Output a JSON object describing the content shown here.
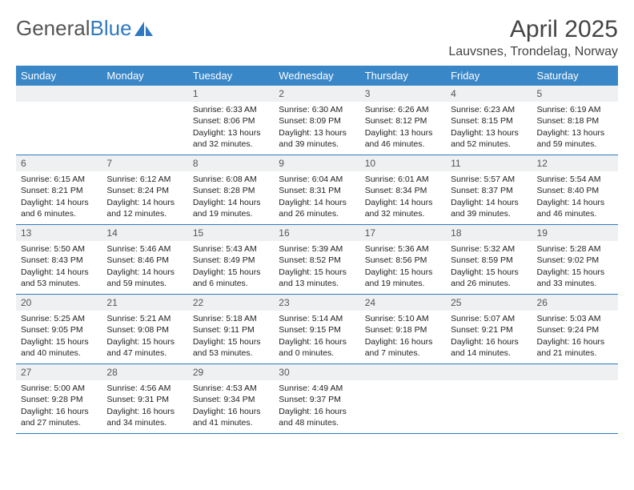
{
  "brand": {
    "part1": "General",
    "part2": "Blue"
  },
  "title": "April 2025",
  "location": "Lauvsnes, Trondelag, Norway",
  "colors": {
    "header_bg": "#3a87c8",
    "header_text": "#ffffff",
    "band_bg": "#eef0f2",
    "rule": "#2f79c2",
    "logo_gray": "#555555",
    "logo_blue": "#2f79c2"
  },
  "weekdays": [
    "Sunday",
    "Monday",
    "Tuesday",
    "Wednesday",
    "Thursday",
    "Friday",
    "Saturday"
  ],
  "weeks": [
    [
      {
        "blank": true
      },
      {
        "blank": true
      },
      {
        "n": "1",
        "sr": "6:33 AM",
        "ss": "8:06 PM",
        "dl": "13 hours and 32 minutes."
      },
      {
        "n": "2",
        "sr": "6:30 AM",
        "ss": "8:09 PM",
        "dl": "13 hours and 39 minutes."
      },
      {
        "n": "3",
        "sr": "6:26 AM",
        "ss": "8:12 PM",
        "dl": "13 hours and 46 minutes."
      },
      {
        "n": "4",
        "sr": "6:23 AM",
        "ss": "8:15 PM",
        "dl": "13 hours and 52 minutes."
      },
      {
        "n": "5",
        "sr": "6:19 AM",
        "ss": "8:18 PM",
        "dl": "13 hours and 59 minutes."
      }
    ],
    [
      {
        "n": "6",
        "sr": "6:15 AM",
        "ss": "8:21 PM",
        "dl": "14 hours and 6 minutes."
      },
      {
        "n": "7",
        "sr": "6:12 AM",
        "ss": "8:24 PM",
        "dl": "14 hours and 12 minutes."
      },
      {
        "n": "8",
        "sr": "6:08 AM",
        "ss": "8:28 PM",
        "dl": "14 hours and 19 minutes."
      },
      {
        "n": "9",
        "sr": "6:04 AM",
        "ss": "8:31 PM",
        "dl": "14 hours and 26 minutes."
      },
      {
        "n": "10",
        "sr": "6:01 AM",
        "ss": "8:34 PM",
        "dl": "14 hours and 32 minutes."
      },
      {
        "n": "11",
        "sr": "5:57 AM",
        "ss": "8:37 PM",
        "dl": "14 hours and 39 minutes."
      },
      {
        "n": "12",
        "sr": "5:54 AM",
        "ss": "8:40 PM",
        "dl": "14 hours and 46 minutes."
      }
    ],
    [
      {
        "n": "13",
        "sr": "5:50 AM",
        "ss": "8:43 PM",
        "dl": "14 hours and 53 minutes."
      },
      {
        "n": "14",
        "sr": "5:46 AM",
        "ss": "8:46 PM",
        "dl": "14 hours and 59 minutes."
      },
      {
        "n": "15",
        "sr": "5:43 AM",
        "ss": "8:49 PM",
        "dl": "15 hours and 6 minutes."
      },
      {
        "n": "16",
        "sr": "5:39 AM",
        "ss": "8:52 PM",
        "dl": "15 hours and 13 minutes."
      },
      {
        "n": "17",
        "sr": "5:36 AM",
        "ss": "8:56 PM",
        "dl": "15 hours and 19 minutes."
      },
      {
        "n": "18",
        "sr": "5:32 AM",
        "ss": "8:59 PM",
        "dl": "15 hours and 26 minutes."
      },
      {
        "n": "19",
        "sr": "5:28 AM",
        "ss": "9:02 PM",
        "dl": "15 hours and 33 minutes."
      }
    ],
    [
      {
        "n": "20",
        "sr": "5:25 AM",
        "ss": "9:05 PM",
        "dl": "15 hours and 40 minutes."
      },
      {
        "n": "21",
        "sr": "5:21 AM",
        "ss": "9:08 PM",
        "dl": "15 hours and 47 minutes."
      },
      {
        "n": "22",
        "sr": "5:18 AM",
        "ss": "9:11 PM",
        "dl": "15 hours and 53 minutes."
      },
      {
        "n": "23",
        "sr": "5:14 AM",
        "ss": "9:15 PM",
        "dl": "16 hours and 0 minutes."
      },
      {
        "n": "24",
        "sr": "5:10 AM",
        "ss": "9:18 PM",
        "dl": "16 hours and 7 minutes."
      },
      {
        "n": "25",
        "sr": "5:07 AM",
        "ss": "9:21 PM",
        "dl": "16 hours and 14 minutes."
      },
      {
        "n": "26",
        "sr": "5:03 AM",
        "ss": "9:24 PM",
        "dl": "16 hours and 21 minutes."
      }
    ],
    [
      {
        "n": "27",
        "sr": "5:00 AM",
        "ss": "9:28 PM",
        "dl": "16 hours and 27 minutes."
      },
      {
        "n": "28",
        "sr": "4:56 AM",
        "ss": "9:31 PM",
        "dl": "16 hours and 34 minutes."
      },
      {
        "n": "29",
        "sr": "4:53 AM",
        "ss": "9:34 PM",
        "dl": "16 hours and 41 minutes."
      },
      {
        "n": "30",
        "sr": "4:49 AM",
        "ss": "9:37 PM",
        "dl": "16 hours and 48 minutes."
      },
      {
        "blank": true
      },
      {
        "blank": true
      },
      {
        "blank": true
      }
    ]
  ],
  "labels": {
    "sunrise": "Sunrise: ",
    "sunset": "Sunset: ",
    "daylight": "Daylight: "
  }
}
